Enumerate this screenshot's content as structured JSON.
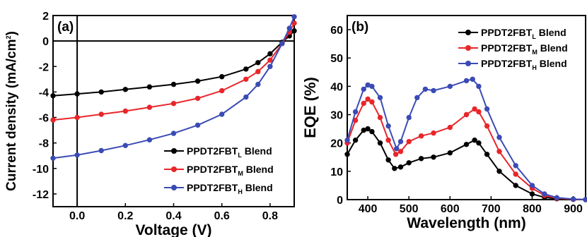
{
  "chart_data": [
    {
      "type": "line",
      "panel_label": "(a)",
      "xlabel": "Voltage (V)",
      "ylabel": "Current density (mA/cm",
      "ylabel_sup": "2",
      "ylabel_end": ")",
      "xlim": [
        -0.1,
        0.9
      ],
      "ylim": [
        -13,
        2
      ],
      "xticks": [
        "0.0",
        "0.2",
        "0.4",
        "0.6",
        "0.8"
      ],
      "xtick_values": [
        0.0,
        0.2,
        0.4,
        0.6,
        0.8
      ],
      "yticks": [
        "2",
        "0",
        "-2",
        "-4",
        "-6",
        "-8",
        "-10",
        "-12"
      ],
      "ytick_values": [
        2,
        0,
        -2,
        -4,
        -6,
        -8,
        -10,
        -12
      ],
      "legend_position": "bottom-right",
      "series": [
        {
          "name": "PPDT2FBT",
          "sub": "L",
          "name_end": " Blend",
          "color": "#000000",
          "x": [
            -0.1,
            0.0,
            0.1,
            0.2,
            0.3,
            0.4,
            0.5,
            0.6,
            0.7,
            0.75,
            0.8,
            0.85,
            0.88,
            0.9
          ],
          "y": [
            -4.3,
            -4.15,
            -4.0,
            -3.8,
            -3.6,
            -3.4,
            -3.15,
            -2.8,
            -2.2,
            -1.7,
            -1.0,
            -0.1,
            0.4,
            0.8
          ]
        },
        {
          "name": "PPDT2FBT",
          "sub": "M",
          "name_end": " Blend",
          "color": "#e8262a",
          "x": [
            -0.1,
            0.0,
            0.1,
            0.2,
            0.3,
            0.4,
            0.5,
            0.6,
            0.7,
            0.75,
            0.8,
            0.85,
            0.88,
            0.9
          ],
          "y": [
            -6.2,
            -6.0,
            -5.75,
            -5.5,
            -5.2,
            -4.9,
            -4.5,
            -3.9,
            -3.0,
            -2.4,
            -1.5,
            -0.2,
            0.7,
            1.4
          ]
        },
        {
          "name": "PPDT2FBT",
          "sub": "H",
          "name_end": " Blend",
          "color": "#3b4bb5",
          "x": [
            -0.1,
            0.0,
            0.1,
            0.2,
            0.3,
            0.4,
            0.5,
            0.6,
            0.7,
            0.75,
            0.8,
            0.85,
            0.88,
            0.9
          ],
          "y": [
            -9.2,
            -8.95,
            -8.6,
            -8.2,
            -7.75,
            -7.25,
            -6.6,
            -5.75,
            -4.4,
            -3.4,
            -2.0,
            -0.2,
            1.0,
            1.9
          ]
        }
      ]
    },
    {
      "type": "line",
      "panel_label": "(b)",
      "xlabel": "Wavelength (nm)",
      "ylabel": "EQE (%)",
      "xlim": [
        350,
        930
      ],
      "ylim": [
        0,
        65
      ],
      "xticks": [
        "400",
        "500",
        "600",
        "700",
        "800",
        "900"
      ],
      "xtick_values": [
        400,
        500,
        600,
        700,
        800,
        900
      ],
      "yticks": [
        "0",
        "10",
        "20",
        "30",
        "40",
        "50",
        "60"
      ],
      "ytick_values": [
        0,
        10,
        20,
        30,
        40,
        50,
        60
      ],
      "legend_position": "top-right",
      "series": [
        {
          "name": "PPDT2FBT",
          "sub": "L",
          "name_end": " Blend",
          "color": "#000000",
          "x": [
            350,
            370,
            390,
            400,
            410,
            430,
            450,
            465,
            480,
            500,
            530,
            560,
            600,
            640,
            660,
            670,
            690,
            720,
            760,
            800,
            830,
            860,
            900,
            930
          ],
          "y": [
            16,
            21,
            24.5,
            25,
            24,
            20,
            14,
            11,
            11.5,
            13,
            14.5,
            15,
            16.5,
            19.5,
            21,
            20,
            16,
            10,
            5,
            2,
            0.8,
            0.3,
            0.1,
            0
          ]
        },
        {
          "name": "PPDT2FBT",
          "sub": "M",
          "name_end": " Blend",
          "color": "#e8262a",
          "x": [
            350,
            370,
            390,
            400,
            410,
            430,
            450,
            468,
            480,
            500,
            530,
            560,
            600,
            640,
            660,
            670,
            690,
            720,
            760,
            800,
            830,
            860,
            900,
            930
          ],
          "y": [
            20,
            28,
            34,
            35.5,
            34.5,
            29,
            21,
            16,
            17,
            20.5,
            22.5,
            23.5,
            25.5,
            30,
            32,
            31,
            26,
            17,
            9,
            4,
            1.5,
            0.5,
            0.1,
            0
          ]
        },
        {
          "name": "PPDT2FBT",
          "sub": "H",
          "name_end": " Blend",
          "color": "#3b4bb5",
          "x": [
            350,
            370,
            390,
            400,
            410,
            430,
            450,
            470,
            480,
            500,
            520,
            540,
            560,
            600,
            640,
            655,
            670,
            690,
            720,
            760,
            800,
            830,
            860,
            900,
            930
          ],
          "y": [
            21,
            31,
            39,
            40.5,
            40,
            36,
            26,
            18,
            20.5,
            29,
            36,
            39,
            38.5,
            40,
            42,
            42.5,
            40,
            32,
            22,
            12,
            5,
            2,
            0.7,
            0.2,
            0
          ]
        }
      ]
    }
  ]
}
